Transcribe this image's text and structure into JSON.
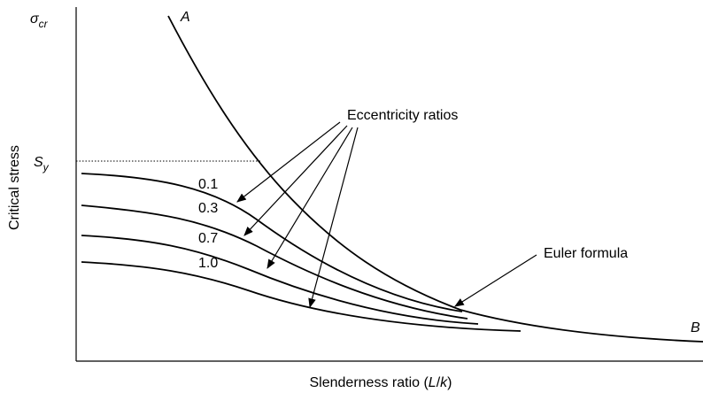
{
  "y_axis": {
    "symbol": "σ",
    "subscript": "cr",
    "label": "Critical stress"
  },
  "yield": {
    "symbol": "S",
    "subscript": "y"
  },
  "x_axis": {
    "label_parts": [
      "Slenderness ratio (",
      "L",
      "/",
      "k",
      ")"
    ]
  },
  "curve_ends": {
    "start": "A",
    "end": "B"
  },
  "annotations": {
    "eccentricity": "Eccentricity ratios",
    "euler": "Euler formula"
  },
  "ratios": [
    "0.1",
    "0.3",
    "0.7",
    "1.0"
  ]
}
